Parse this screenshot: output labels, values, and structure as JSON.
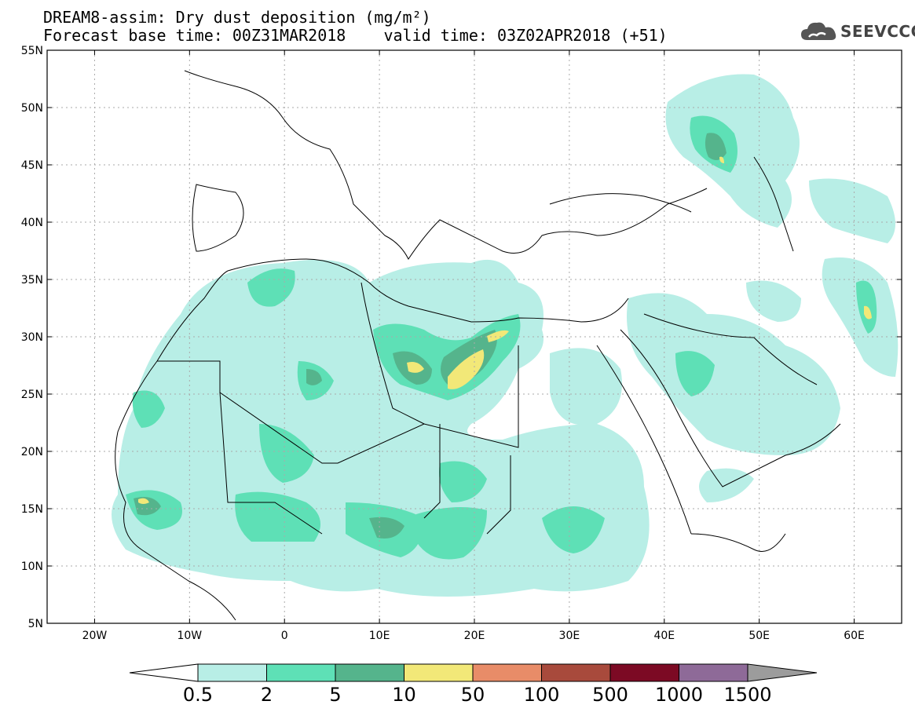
{
  "title": {
    "line1": "DREAM8-assim: Dry dust deposition (mg/m²)",
    "line2": "Forecast base time: 00Z31MAR2018    valid time: 03Z02APR2018 (+51)"
  },
  "logo": {
    "icon": "cloud-icon",
    "text": "SEEVCCC"
  },
  "map": {
    "lon_range": [
      -25,
      65
    ],
    "lat_range": [
      5,
      55
    ],
    "grid": true,
    "lat_labels": [
      "55N",
      "50N",
      "45N",
      "40N",
      "35N",
      "30N",
      "25N",
      "20N",
      "15N",
      "10N",
      "5N"
    ],
    "lon_labels": [
      "20W",
      "10W",
      "0",
      "10E",
      "20E",
      "30E",
      "40E",
      "50E",
      "60E"
    ]
  },
  "legend": {
    "levels": [
      "0.5",
      "2",
      "5",
      "10",
      "50",
      "100",
      "500",
      "1000",
      "1500"
    ],
    "colors": [
      "#b8eee6",
      "#5ee0b6",
      "#55b48c",
      "#f2e878",
      "#e88c68",
      "#a84a3c",
      "#7c0a24",
      "#8e6a98",
      "#9c9c9c"
    ],
    "under_color": "#ffffff",
    "over_color": "#9c9c9c"
  },
  "colors": {
    "level1": "#b8eee6",
    "level2": "#5ee0b6",
    "level3": "#55b48c",
    "level4": "#f2e878",
    "coast": "#000000"
  }
}
